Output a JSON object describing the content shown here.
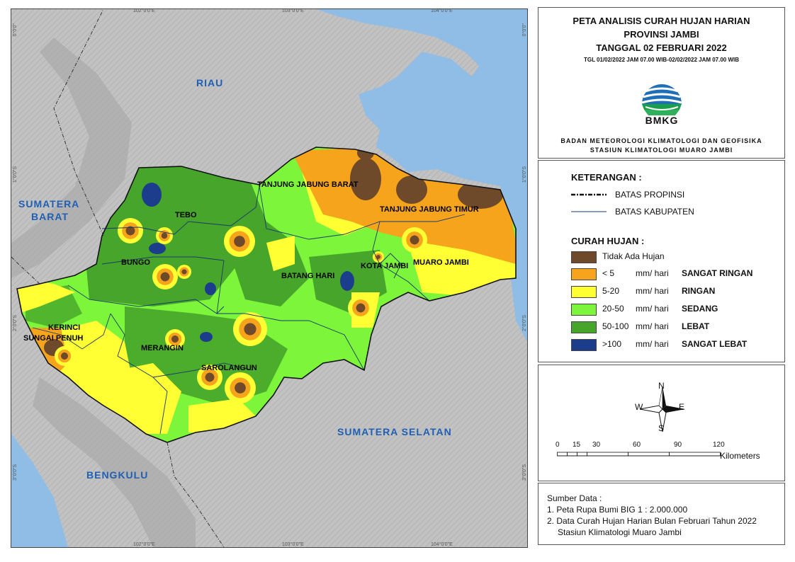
{
  "map": {
    "ticks_top": [
      "102°0'0\"E",
      "103°0'0\"E",
      "104°0'0\"E"
    ],
    "ticks_bottom": [
      "102°0'0\"E",
      "103°0'0\"E",
      "104°0'0\"E"
    ],
    "ticks_left": [
      "0°0'0\"",
      "1°0'0\"S",
      "2°0'0\"S",
      "3°0'0\"S"
    ],
    "ticks_right": [
      "0°0'0\"",
      "1°0'0\"S",
      "2°0'0\"S",
      "3°0'0\"S"
    ],
    "regions": {
      "riau": "RIAU",
      "sumbar_1": "SUMATERA",
      "sumbar_2": "BARAT",
      "sumsel": "SUMATERA SELATAN",
      "bengkulu": "BENGKULU"
    },
    "kabupaten": {
      "tebo": "TEBO",
      "bungo": "BUNGO",
      "tjb": "TANJUNG JABUNG BARAT",
      "tjt": "TANJUNG JABUNG TIMUR",
      "batanghari": "BATANG HARI",
      "kotajambi": "KOTA JAMBI",
      "muarojambi": "MUARO JAMBI",
      "kerinci": "KERINCI",
      "sungaipenuh": "SUNGAI PENUH",
      "merangin": "MERANGIN",
      "sarolangun": "SAROLANGUN"
    },
    "colors": {
      "sea": "#8fbde6",
      "land": "#c4c4c4",
      "no_rain": "#6e4a2a",
      "very_light": "#f7a41d",
      "light": "#ffff33",
      "moderate": "#7cf53a",
      "heavy": "#46a52a",
      "very_heavy": "#1c3d8c"
    }
  },
  "title": {
    "line1": "PETA ANALISIS CURAH HUJAN HARIAN",
    "line2": "PROVINSI JAMBI",
    "line3": "TANGGAL 02 FEBRUARI 2022",
    "period": "TGL 01/02/2022 JAM 07.00 WIB-02/02/2022 JAM 07.00 WIB",
    "logo_text": "BMKG",
    "agency1": "BADAN METEOROLOGI KLIMATOLOGI DAN GEOFISIKA",
    "agency2": "STASIUN KLIMATOLOGI MUARO JAMBI"
  },
  "legend": {
    "heading": "KETERANGAN :",
    "batas_propinsi": "BATAS PROPINSI",
    "batas_kabupaten": "BATAS KABUPATEN",
    "curah_heading": "CURAH HUJAN :",
    "classes": [
      {
        "label": "Tidak Ada Hujan",
        "unit": "",
        "category": "",
        "color": "#6e4a2a"
      },
      {
        "label": "< 5",
        "unit": "mm/ hari",
        "category": "SANGAT RINGAN",
        "color": "#f7a41d"
      },
      {
        "label": "5-20",
        "unit": "mm/ hari",
        "category": "RINGAN",
        "color": "#ffff33"
      },
      {
        "label": "20-50",
        "unit": "mm/ hari",
        "category": "SEDANG",
        "color": "#7cf53a"
      },
      {
        "label": "50-100",
        "unit": "mm/ hari",
        "category": "LEBAT",
        "color": "#46a52a"
      },
      {
        "label": ">100",
        "unit": "mm/ hari",
        "category": "SANGAT LEBAT",
        "color": "#1c3d8c"
      }
    ]
  },
  "north_arrow": {
    "n": "N",
    "s": "S",
    "e": "E",
    "w": "W"
  },
  "scale_bar": {
    "ticks": [
      "0",
      "15",
      "30",
      "60",
      "90",
      "120"
    ],
    "unit": "Kilometers"
  },
  "source": {
    "heading": "Sumber Data :",
    "line1": "1. Peta Rupa Bumi BIG 1 : 2.000.000",
    "line2": "2. Data Curah Hujan Harian Bulan Februari Tahun 2022",
    "line3": "Stasiun Klimatologi Muaro Jambi"
  }
}
